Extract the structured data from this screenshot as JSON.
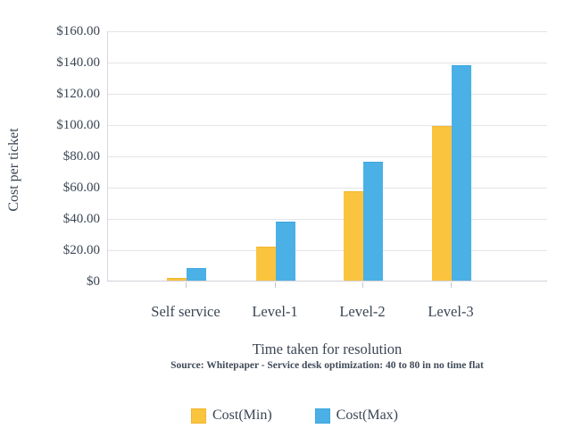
{
  "chart_data": {
    "type": "bar",
    "categories": [
      "Self service",
      "Level-1",
      "Level-2",
      "Level-3"
    ],
    "series": [
      {
        "name": "Cost(Min)",
        "color": "#FAC43F",
        "edge_color": "#F2B62F",
        "values": [
          2,
          22,
          57,
          99
        ]
      },
      {
        "name": "Cost(Max)",
        "color": "#4BB0E6",
        "edge_color": "#3CA5E0",
        "values": [
          8,
          38,
          76,
          138
        ]
      }
    ],
    "xlabel": "Time taken for resolution",
    "ylabel": "Cost per ticket",
    "ylim": [
      0,
      160
    ],
    "ytick_step": 20,
    "ytick_labels": [
      "$160.00",
      "$140.00",
      "$120.00",
      "$100.00",
      "$80.00",
      "$60.00",
      "$40.00",
      "$20.00",
      "$0"
    ],
    "grid": true,
    "legend_position": "bottom",
    "source": "Source: Whitepaper - Service desk optimization: 40 to 80 in no time flat",
    "colors": {
      "text": "#3A4553",
      "gridline": "#E4E4EA",
      "axis": "#D2D2D8"
    }
  }
}
